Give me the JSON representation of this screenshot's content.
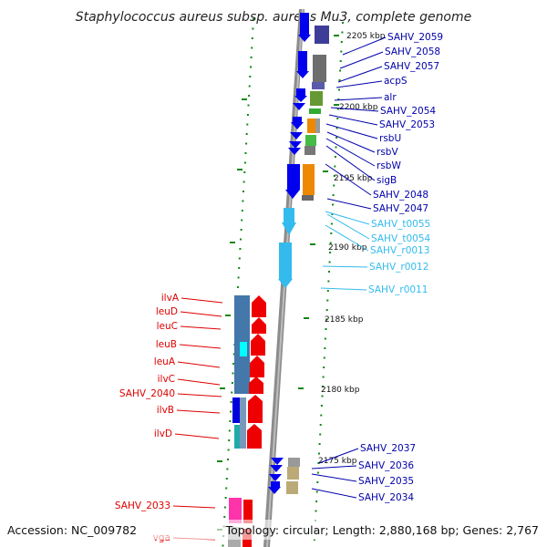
{
  "title": "Staphylococcus aureus subsp. aureus Mu3, complete genome",
  "footer": {
    "accession": "Accession: NC_009782",
    "summary": "Topology: circular; Length: 2,880,168 bp; Genes: 2,767"
  },
  "colors": {
    "blue_gene": "#0000ee",
    "cyan_gene": "#33bbee",
    "red_gene": "#ee0000",
    "tick": "#118811",
    "backbone": "#888888"
  },
  "kbp_labels": [
    "2205 kbp",
    "2200 kbp",
    "2195 kbp",
    "2190 kbp",
    "2185 kbp",
    "2180 kbp",
    "2175 kbp"
  ],
  "right_genes": [
    {
      "name": "SAHV_2059",
      "color": "#0000aa"
    },
    {
      "name": "SAHV_2058",
      "color": "#0000aa"
    },
    {
      "name": "SAHV_2057",
      "color": "#0000aa"
    },
    {
      "name": "acpS",
      "color": "#0000aa"
    },
    {
      "name": "alr",
      "color": "#0000aa"
    },
    {
      "name": "SAHV_2054",
      "color": "#0000aa"
    },
    {
      "name": "SAHV_2053",
      "color": "#0000aa"
    },
    {
      "name": "rsbU",
      "color": "#0000aa"
    },
    {
      "name": "rsbV",
      "color": "#0000aa"
    },
    {
      "name": "rsbW",
      "color": "#0000aa"
    },
    {
      "name": "sigB",
      "color": "#0000aa"
    },
    {
      "name": "SAHV_2048",
      "color": "#0000aa"
    },
    {
      "name": "SAHV_2047",
      "color": "#0000aa"
    },
    {
      "name": "SAHV_t0055",
      "color": "#33bbee"
    },
    {
      "name": "SAHV_t0054",
      "color": "#33bbee"
    },
    {
      "name": "SAHV_r0013",
      "color": "#33bbee"
    },
    {
      "name": "SAHV_r0012",
      "color": "#33bbee"
    },
    {
      "name": "SAHV_r0011",
      "color": "#33bbee"
    },
    {
      "name": "SAHV_2037",
      "color": "#0000aa"
    },
    {
      "name": "SAHV_2036",
      "color": "#0000aa"
    },
    {
      "name": "SAHV_2035",
      "color": "#0000aa"
    },
    {
      "name": "SAHV_2034",
      "color": "#0000aa"
    }
  ],
  "left_genes": [
    {
      "name": "ilvA",
      "color": "#dd0000"
    },
    {
      "name": "leuD",
      "color": "#dd0000"
    },
    {
      "name": "leuC",
      "color": "#dd0000"
    },
    {
      "name": "leuB",
      "color": "#dd0000"
    },
    {
      "name": "leuA",
      "color": "#dd0000"
    },
    {
      "name": "ilvC",
      "color": "#dd0000"
    },
    {
      "name": "SAHV_2040",
      "color": "#dd0000"
    },
    {
      "name": "ilvB",
      "color": "#dd0000"
    },
    {
      "name": "ilvD",
      "color": "#dd0000"
    },
    {
      "name": "SAHV_2033",
      "color": "#dd0000"
    },
    {
      "name": "vga",
      "color": "#dd0000"
    }
  ]
}
